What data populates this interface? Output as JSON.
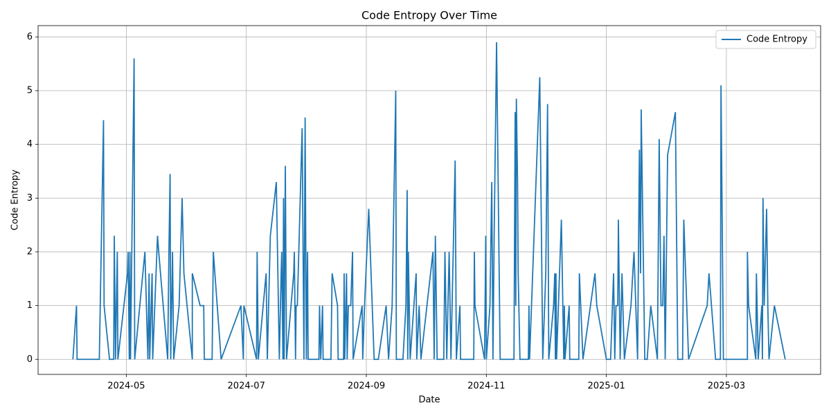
{
  "chart_data": {
    "type": "line",
    "title": "Code Entropy Over Time",
    "xlabel": "Date",
    "ylabel": "Code Entropy",
    "x": [
      4.11,
      4.17,
      4.18,
      4.55,
      4.62,
      4.63,
      4.72,
      4.79,
      4.8,
      4.82,
      4.85,
      4.86,
      5.02,
      5.03,
      5.05,
      5.06,
      5.07,
      5.13,
      5.14,
      5.31,
      5.36,
      5.38,
      5.39,
      5.43,
      5.44,
      5.52,
      5.54,
      5.57,
      5.69,
      5.71,
      5.73,
      5.74,
      5.77,
      5.79,
      5.88,
      5.93,
      5.96,
      6.1,
      6.1,
      6.23,
      6.29,
      6.3,
      6.43,
      6.45,
      6.58,
      6.91,
      6.95,
      6.96,
      7.17,
      7.18,
      7.2,
      7.33,
      7.35,
      7.4,
      7.5,
      7.55,
      7.58,
      7.59,
      7.61,
      7.62,
      7.63,
      7.65,
      7.67,
      7.79,
      7.8,
      7.82,
      7.83,
      7.85,
      7.93,
      7.96,
      7.98,
      8.0,
      8.02,
      8.03,
      8.21,
      8.22,
      8.24,
      8.27,
      8.28,
      8.41,
      8.43,
      8.52,
      8.53,
      8.62,
      8.63,
      8.64,
      8.67,
      8.68,
      8.7,
      8.74,
      8.77,
      8.78,
      8.93,
      8.94,
      8.97,
      9.04,
      9.13,
      9.2,
      9.33,
      9.37,
      9.43,
      9.49,
      9.5,
      9.61,
      9.66,
      9.68,
      9.69,
      9.7,
      9.73,
      9.83,
      9.84,
      9.88,
      9.91,
      10.11,
      10.13,
      10.15,
      10.18,
      10.29,
      10.31,
      10.34,
      10.38,
      10.41,
      10.48,
      10.5,
      10.56,
      10.57,
      10.79,
      10.8,
      10.81,
      10.97,
      10.99,
      11.0,
      11.06,
      11.09,
      11.11,
      11.13,
      11.17,
      11.23,
      11.46,
      11.48,
      11.49,
      11.5,
      11.52,
      11.53,
      11.56,
      11.7,
      11.71,
      11.72,
      11.89,
      11.94,
      11.99,
      12.02,
      12.04,
      12.12,
      12.14,
      12.15,
      12.16,
      12.17,
      12.25,
      12.29,
      12.3,
      12.31,
      12.38,
      12.39,
      12.54,
      12.55,
      12.61,
      12.81,
      12.84,
      13.0,
      13.07,
      13.12,
      13.14,
      13.16,
      13.19,
      13.2,
      13.23,
      13.26,
      13.3,
      13.41,
      13.46,
      13.52,
      13.55,
      13.57,
      13.58,
      13.64,
      13.68,
      13.74,
      13.85,
      13.88,
      13.91,
      13.94,
      13.96,
      13.98,
      14.02,
      14.15,
      14.19,
      14.27,
      14.29,
      14.37,
      14.68,
      14.71,
      14.82,
      14.9,
      14.91,
      14.95,
      15.35,
      15.35,
      15.37,
      15.49,
      15.5,
      15.53,
      15.59,
      15.6,
      15.61,
      15.63,
      15.67,
      15.69,
      15.71,
      15.8,
      15.98
    ],
    "series": [
      {
        "name": "Code Entropy",
        "color": "#1f77b4",
        "values": [
          0,
          1,
          0,
          0,
          4.45,
          1,
          0,
          0,
          2.3,
          0,
          2,
          0,
          1.6,
          2,
          0,
          2,
          0,
          5.6,
          0,
          2,
          0,
          1.6,
          0,
          1.6,
          0,
          2.3,
          2,
          1.6,
          0,
          2,
          3.45,
          0,
          2,
          0,
          1,
          3,
          1.6,
          0,
          1.6,
          1,
          1,
          0,
          0,
          2,
          0,
          1,
          0,
          1,
          0,
          2,
          0,
          1.6,
          0,
          2.3,
          3.3,
          0,
          1.6,
          2,
          0,
          3,
          0,
          3.6,
          0,
          1.6,
          2,
          0,
          1,
          1,
          4.3,
          0,
          4.5,
          0,
          2,
          0,
          0,
          1,
          0,
          1,
          0,
          0,
          1.6,
          1,
          0,
          0,
          1.6,
          0,
          1.6,
          0,
          1,
          1,
          2,
          0,
          1,
          0,
          1,
          2.8,
          0,
          0,
          1,
          0,
          1,
          5,
          0,
          0,
          1,
          3.15,
          0,
          2,
          0,
          1.6,
          0,
          1,
          0,
          2,
          0,
          2.3,
          0,
          0,
          2,
          0,
          2,
          0,
          3.7,
          0,
          1,
          0,
          0,
          2,
          1,
          0,
          2.3,
          0,
          1,
          3.3,
          0,
          2.3,
          5.9,
          0,
          0,
          4.6,
          1,
          4.85,
          3.3,
          1.6,
          0,
          0,
          1,
          0,
          5.25,
          0,
          1.6,
          4.75,
          0,
          1,
          1.6,
          0,
          1.6,
          0,
          2.6,
          0,
          1,
          0,
          1,
          0,
          0,
          1.6,
          0,
          1.6,
          1,
          0,
          0,
          1.6,
          0,
          1,
          1,
          2.6,
          0,
          1.6,
          0,
          1,
          2,
          0,
          3.9,
          1.6,
          4.65,
          0,
          0,
          1,
          0,
          4.1,
          1,
          1,
          2.3,
          0,
          3.8,
          4.6,
          0,
          0,
          2.6,
          0,
          1,
          1.6,
          0,
          0,
          5.1,
          0,
          0,
          2,
          1,
          0,
          1.6,
          0,
          1,
          0,
          3,
          1,
          2.8,
          1,
          0,
          1,
          0
        ]
      }
    ],
    "xlim": [
      3.53,
      16.57
    ],
    "xticks": [
      {
        "value": 5,
        "label": "2024-05"
      },
      {
        "value": 7,
        "label": "2024-07"
      },
      {
        "value": 9,
        "label": "2024-09"
      },
      {
        "value": 11,
        "label": "2024-11"
      },
      {
        "value": 13,
        "label": "2025-01"
      },
      {
        "value": 15,
        "label": "2025-03"
      }
    ],
    "ylim": [
      -0.28,
      6.21
    ],
    "yticks": [
      0,
      1,
      2,
      3,
      4,
      5,
      6
    ],
    "grid": true,
    "legend": "upper right"
  }
}
